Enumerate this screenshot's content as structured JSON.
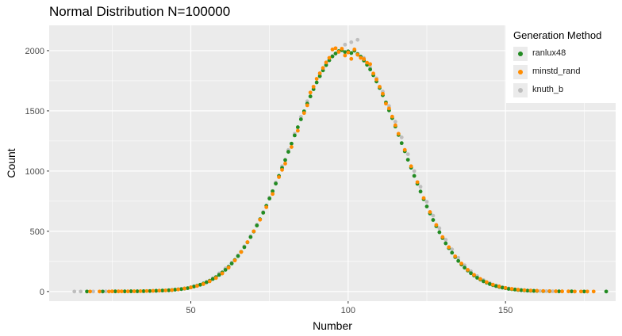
{
  "chart_data": {
    "type": "scatter",
    "title": "Normal Distribution N=100000",
    "xlabel": "Number",
    "ylabel": "Count",
    "xlim": [
      5,
      185
    ],
    "ylim": [
      -80,
      2210
    ],
    "xticks": [
      50,
      100,
      150
    ],
    "yticks": [
      0,
      500,
      1000,
      1500,
      2000
    ],
    "grid": true,
    "legend_title": "Generation Method",
    "legend_position": "top-right",
    "series": [
      {
        "name": "ranlux48",
        "color": "#228B22",
        "points": [
          [
            17,
            0
          ],
          [
            22,
            0
          ],
          [
            26,
            1
          ],
          [
            29,
            1
          ],
          [
            31,
            2
          ],
          [
            33,
            2
          ],
          [
            35,
            3
          ],
          [
            37,
            4
          ],
          [
            39,
            6
          ],
          [
            41,
            8
          ],
          [
            43,
            10
          ],
          [
            44,
            12
          ],
          [
            45,
            15
          ],
          [
            46,
            18
          ],
          [
            47,
            20
          ],
          [
            48,
            24
          ],
          [
            49,
            28
          ],
          [
            50,
            34
          ],
          [
            51,
            41
          ],
          [
            52,
            48
          ],
          [
            53,
            56
          ],
          [
            54,
            66
          ],
          [
            55,
            77
          ],
          [
            56,
            90
          ],
          [
            57,
            104
          ],
          [
            58,
            120
          ],
          [
            59,
            138
          ],
          [
            60,
            158
          ],
          [
            61,
            180
          ],
          [
            62,
            205
          ],
          [
            63,
            232
          ],
          [
            64,
            262
          ],
          [
            65,
            294
          ],
          [
            66,
            329
          ],
          [
            67,
            368
          ],
          [
            68,
            408
          ],
          [
            69,
            452
          ],
          [
            70,
            498
          ],
          [
            71,
            548
          ],
          [
            72,
            600
          ],
          [
            73,
            654
          ],
          [
            74,
            712
          ],
          [
            75,
            772
          ],
          [
            76,
            833
          ],
          [
            77,
            896
          ],
          [
            78,
            960
          ],
          [
            79,
            1026
          ],
          [
            80,
            1092
          ],
          [
            81,
            1160
          ],
          [
            82,
            1228
          ],
          [
            83,
            1296
          ],
          [
            84,
            1364
          ],
          [
            85,
            1430
          ],
          [
            86,
            1496
          ],
          [
            87,
            1560
          ],
          [
            88,
            1620
          ],
          [
            89,
            1680
          ],
          [
            90,
            1736
          ],
          [
            91,
            1788
          ],
          [
            92,
            1836
          ],
          [
            93,
            1880
          ],
          [
            94,
            1920
          ],
          [
            95,
            1952
          ],
          [
            96,
            1976
          ],
          [
            97,
            1996
          ],
          [
            98,
            2004
          ],
          [
            99,
            1988
          ],
          [
            100,
            1994
          ],
          [
            101,
            1980
          ],
          [
            102,
            2000
          ],
          [
            103,
            1972
          ],
          [
            104,
            1950
          ],
          [
            105,
            1918
          ],
          [
            106,
            1882
          ],
          [
            107,
            1844
          ],
          [
            108,
            1796
          ],
          [
            109,
            1744
          ],
          [
            110,
            1690
          ],
          [
            111,
            1630
          ],
          [
            112,
            1570
          ],
          [
            113,
            1504
          ],
          [
            114,
            1440
          ],
          [
            115,
            1370
          ],
          [
            116,
            1300
          ],
          [
            117,
            1232
          ],
          [
            118,
            1164
          ],
          [
            119,
            1094
          ],
          [
            120,
            1028
          ],
          [
            121,
            960
          ],
          [
            122,
            894
          ],
          [
            123,
            830
          ],
          [
            124,
            766
          ],
          [
            125,
            706
          ],
          [
            126,
            648
          ],
          [
            127,
            594
          ],
          [
            128,
            542
          ],
          [
            129,
            492
          ],
          [
            130,
            444
          ],
          [
            131,
            400
          ],
          [
            132,
            360
          ],
          [
            133,
            322
          ],
          [
            134,
            286
          ],
          [
            135,
            254
          ],
          [
            136,
            224
          ],
          [
            137,
            198
          ],
          [
            138,
            174
          ],
          [
            139,
            152
          ],
          [
            140,
            132
          ],
          [
            141,
            114
          ],
          [
            142,
            99
          ],
          [
            143,
            85
          ],
          [
            144,
            73
          ],
          [
            145,
            62
          ],
          [
            146,
            53
          ],
          [
            147,
            45
          ],
          [
            148,
            38
          ],
          [
            149,
            32
          ],
          [
            150,
            27
          ],
          [
            151,
            22
          ],
          [
            152,
            19
          ],
          [
            153,
            16
          ],
          [
            154,
            13
          ],
          [
            155,
            11
          ],
          [
            156,
            9
          ],
          [
            157,
            7
          ],
          [
            158,
            6
          ],
          [
            159,
            5
          ],
          [
            160,
            4
          ],
          [
            162,
            3
          ],
          [
            164,
            2
          ],
          [
            167,
            1
          ],
          [
            171,
            1
          ],
          [
            175,
            0
          ],
          [
            182,
            0
          ]
        ]
      },
      {
        "name": "minstd_rand",
        "color": "#FF8C00",
        "points": [
          [
            18,
            0
          ],
          [
            21,
            0
          ],
          [
            24,
            0
          ],
          [
            25,
            1
          ],
          [
            27,
            1
          ],
          [
            28,
            1
          ],
          [
            30,
            1
          ],
          [
            32,
            2
          ],
          [
            34,
            3
          ],
          [
            36,
            4
          ],
          [
            38,
            5
          ],
          [
            40,
            7
          ],
          [
            42,
            9
          ],
          [
            44,
            12
          ],
          [
            46,
            17
          ],
          [
            48,
            25
          ],
          [
            50,
            34
          ],
          [
            52,
            46
          ],
          [
            54,
            62
          ],
          [
            56,
            85
          ],
          [
            58,
            112
          ],
          [
            60,
            150
          ],
          [
            62,
            198
          ],
          [
            64,
            258
          ],
          [
            66,
            328
          ],
          [
            68,
            410
          ],
          [
            70,
            500
          ],
          [
            72,
            596
          ],
          [
            74,
            700
          ],
          [
            76,
            810
          ],
          [
            78,
            950
          ],
          [
            79,
            1010
          ],
          [
            80,
            1062
          ],
          [
            82,
            1200
          ],
          [
            84,
            1335
          ],
          [
            86,
            1482
          ],
          [
            87,
            1546
          ],
          [
            88,
            1652
          ],
          [
            89,
            1700
          ],
          [
            90,
            1766
          ],
          [
            91,
            1812
          ],
          [
            92,
            1856
          ],
          [
            93,
            1902
          ],
          [
            94,
            1940
          ],
          [
            95,
            2010
          ],
          [
            96,
            2020
          ],
          [
            97,
            1990
          ],
          [
            98,
            2016
          ],
          [
            99,
            1960
          ],
          [
            100,
            1985
          ],
          [
            101,
            1932
          ],
          [
            102,
            2010
          ],
          [
            103,
            1966
          ],
          [
            104,
            1940
          ],
          [
            105,
            1930
          ],
          [
            106,
            1900
          ],
          [
            107,
            1888
          ],
          [
            108,
            1810
          ],
          [
            109,
            1760
          ],
          [
            110,
            1700
          ],
          [
            111,
            1642
          ],
          [
            112,
            1560
          ],
          [
            113,
            1520
          ],
          [
            114,
            1452
          ],
          [
            115,
            1380
          ],
          [
            116,
            1310
          ],
          [
            118,
            1176
          ],
          [
            120,
            1040
          ],
          [
            122,
            908
          ],
          [
            124,
            776
          ],
          [
            126,
            660
          ],
          [
            128,
            552
          ],
          [
            130,
            452
          ],
          [
            132,
            368
          ],
          [
            134,
            292
          ],
          [
            136,
            232
          ],
          [
            138,
            180
          ],
          [
            140,
            138
          ],
          [
            142,
            104
          ],
          [
            144,
            78
          ],
          [
            146,
            57
          ],
          [
            148,
            42
          ],
          [
            150,
            30
          ],
          [
            152,
            22
          ],
          [
            154,
            15
          ],
          [
            156,
            11
          ],
          [
            158,
            8
          ],
          [
            160,
            6
          ],
          [
            162,
            4
          ],
          [
            164,
            3
          ],
          [
            166,
            2
          ],
          [
            168,
            1
          ],
          [
            170,
            1
          ],
          [
            172,
            0
          ],
          [
            174,
            0
          ],
          [
            176,
            0
          ],
          [
            178,
            0
          ]
        ]
      },
      {
        "name": "knuth_b",
        "color": "#BEBEBE",
        "points": [
          [
            13,
            0
          ],
          [
            15,
            0
          ],
          [
            19,
            0
          ],
          [
            23,
            1
          ],
          [
            27,
            1
          ],
          [
            31,
            2
          ],
          [
            35,
            3
          ],
          [
            39,
            5
          ],
          [
            43,
            10
          ],
          [
            47,
            21
          ],
          [
            51,
            42
          ],
          [
            55,
            78
          ],
          [
            57,
            110
          ],
          [
            59,
            150
          ],
          [
            61,
            192
          ],
          [
            63,
            240
          ],
          [
            65,
            300
          ],
          [
            67,
            375
          ],
          [
            69,
            460
          ],
          [
            71,
            555
          ],
          [
            73,
            660
          ],
          [
            75,
            780
          ],
          [
            77,
            905
          ],
          [
            79,
            1040
          ],
          [
            81,
            1175
          ],
          [
            83,
            1310
          ],
          [
            85,
            1450
          ],
          [
            87,
            1580
          ],
          [
            89,
            1700
          ],
          [
            91,
            1805
          ],
          [
            93,
            1890
          ],
          [
            95,
            1955
          ],
          [
            97,
            1990
          ],
          [
            99,
            2050
          ],
          [
            101,
            2070
          ],
          [
            103,
            2090
          ],
          [
            105,
            1940
          ],
          [
            107,
            1860
          ],
          [
            109,
            1770
          ],
          [
            111,
            1660
          ],
          [
            113,
            1540
          ],
          [
            115,
            1410
          ],
          [
            117,
            1280
          ],
          [
            119,
            1140
          ],
          [
            121,
            1000
          ],
          [
            123,
            870
          ],
          [
            125,
            745
          ],
          [
            127,
            630
          ],
          [
            129,
            525
          ],
          [
            131,
            430
          ],
          [
            133,
            350
          ],
          [
            135,
            280
          ],
          [
            137,
            218
          ],
          [
            139,
            168
          ],
          [
            141,
            128
          ],
          [
            143,
            95
          ],
          [
            145,
            70
          ],
          [
            147,
            50
          ],
          [
            149,
            36
          ],
          [
            151,
            26
          ],
          [
            153,
            18
          ],
          [
            155,
            12
          ],
          [
            157,
            8
          ],
          [
            159,
            5
          ],
          [
            161,
            4
          ],
          [
            163,
            3
          ],
          [
            165,
            2
          ],
          [
            168,
            1
          ],
          [
            172,
            0
          ],
          [
            176,
            0
          ]
        ]
      }
    ]
  }
}
